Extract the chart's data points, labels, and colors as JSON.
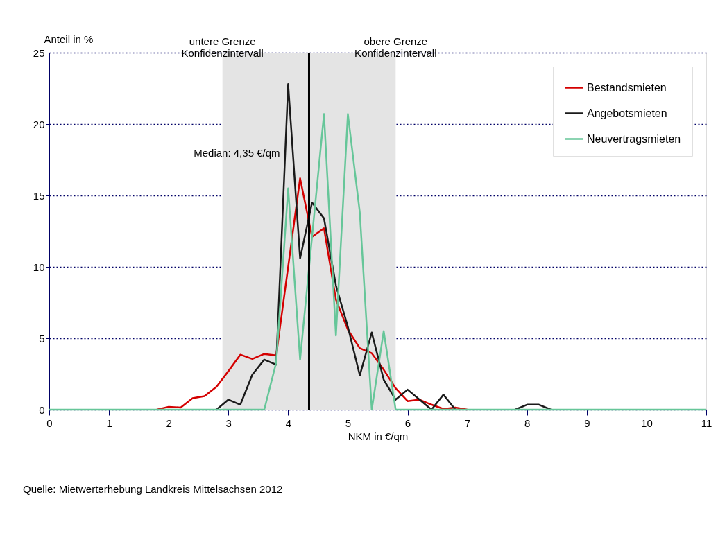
{
  "chart_data": {
    "type": "line",
    "ylabel": "Anteil in %",
    "xlabel": "NKM in €/qm",
    "x": [
      0,
      0.2,
      0.4,
      0.6,
      0.8,
      1,
      1.2,
      1.4,
      1.6,
      1.8,
      2,
      2.2,
      2.4,
      2.6,
      2.8,
      3,
      3.2,
      3.4,
      3.6,
      3.8,
      4,
      4.2,
      4.4,
      4.6,
      4.8,
      5,
      5.2,
      5.4,
      5.6,
      5.8,
      6,
      6.2,
      6.4,
      6.6,
      6.8,
      7,
      7.2,
      7.4,
      7.6,
      7.8,
      8,
      8.2,
      8.4,
      8.6,
      8.8,
      9,
      9.2,
      9.4,
      9.6,
      9.8,
      10,
      10.2,
      10.4,
      10.6,
      10.8,
      11
    ],
    "series": [
      {
        "name": "Bestandsmieten",
        "color": "#d40000",
        "values": [
          null,
          null,
          null,
          null,
          null,
          null,
          null,
          null,
          null,
          0,
          0.2,
          0.15,
          0.8,
          0.95,
          1.6,
          2.7,
          3.85,
          3.55,
          3.9,
          3.8,
          10,
          16.2,
          12.1,
          12.7,
          7.7,
          5.6,
          4.3,
          3.95,
          2.8,
          1.5,
          0.6,
          0.7,
          0.35,
          0.05,
          0.15,
          0,
          null,
          null,
          null,
          null,
          null,
          null,
          null,
          null,
          null,
          null,
          null,
          null,
          null,
          null,
          null,
          null,
          null,
          null,
          null,
          null
        ]
      },
      {
        "name": "Angebotsmieten",
        "color": "#1a1a1a",
        "values": [
          null,
          null,
          null,
          null,
          null,
          null,
          null,
          null,
          null,
          null,
          null,
          null,
          null,
          null,
          0,
          0.7,
          0.35,
          2.45,
          3.5,
          3.15,
          22.8,
          10.6,
          14.5,
          13.4,
          8.7,
          5.8,
          2.4,
          5.4,
          2.1,
          0.7,
          1.4,
          0.7,
          0,
          1.05,
          0,
          null,
          null,
          null,
          null,
          0,
          0.35,
          0.35,
          0,
          null,
          null,
          null,
          null,
          null,
          null,
          null,
          null,
          null,
          null,
          null,
          null,
          null
        ]
      },
      {
        "name": "Neuvertragsmieten",
        "color": "#66c699",
        "values": [
          0,
          0,
          0,
          0,
          0,
          0,
          0,
          0,
          0,
          0,
          0,
          0,
          0,
          0,
          0,
          0,
          0,
          0,
          0,
          3.3,
          15.5,
          3.5,
          12.1,
          20.7,
          5.2,
          20.7,
          13.8,
          0,
          5.5,
          0,
          0,
          0,
          0,
          0,
          0,
          0,
          0,
          0,
          0,
          0,
          0,
          0,
          0,
          0,
          0,
          0,
          0,
          0,
          0,
          0,
          0,
          0,
          0,
          0,
          0,
          0
        ]
      }
    ],
    "xlim": [
      0,
      11
    ],
    "xticks": [
      0,
      1,
      2,
      3,
      4,
      5,
      6,
      7,
      8,
      9,
      10,
      11
    ],
    "ylim": [
      0,
      25
    ],
    "yticks": [
      0,
      5,
      10,
      15,
      20,
      25
    ],
    "grid": "y",
    "legend": "top right",
    "line_style": "solid",
    "marker": "none",
    "ref_lines": [
      {
        "axis": "x",
        "value": 4.35,
        "label": "Median: 4,35 €/qm",
        "color": "#000000"
      }
    ],
    "bands": [
      {
        "axis": "x",
        "from": 2.9,
        "to": 5.8,
        "color": "#e4e4e4"
      }
    ],
    "annotations": [
      "untere Grenze\nKonfidenzintervall",
      "obere Grenze\nKonfidenzintervall",
      "Quelle: Mietwerterhebung Landkreis Mittelsachsen 2012"
    ]
  }
}
